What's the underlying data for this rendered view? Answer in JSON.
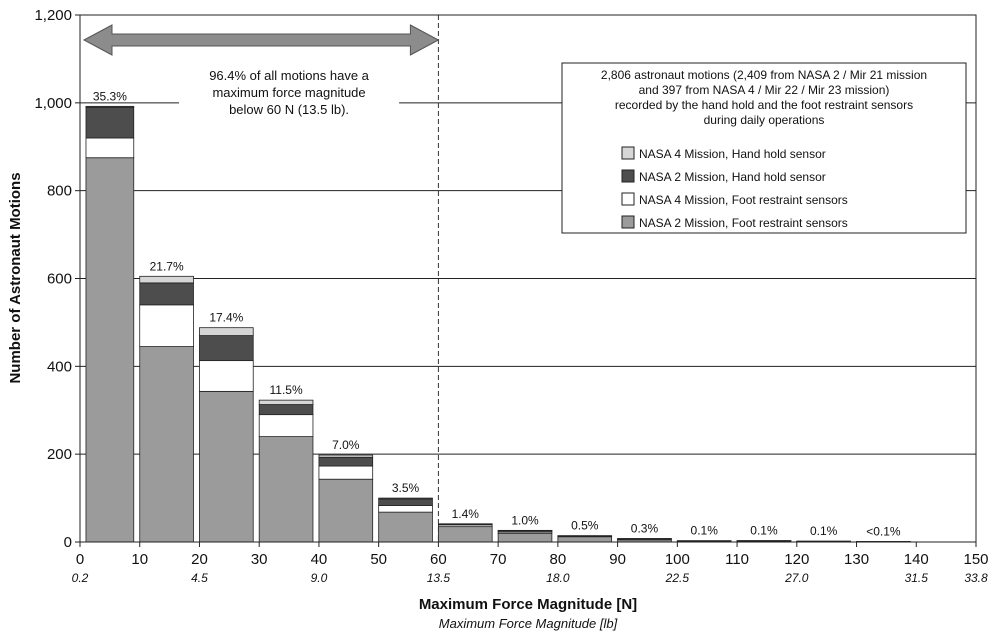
{
  "chart_data": {
    "type": "bar",
    "stacked": true,
    "xlabel": "Maximum Force Magnitude [N]",
    "xlabel2": "Maximum Force Magnitude [lb]",
    "ylabel": "Number of Astronaut Motions",
    "xlim": [
      0,
      150
    ],
    "ylim": [
      0,
      1200
    ],
    "xticks": [
      0,
      10,
      20,
      30,
      40,
      50,
      60,
      70,
      80,
      90,
      100,
      110,
      120,
      130,
      140,
      150
    ],
    "yticks": [
      0,
      200,
      400,
      600,
      800,
      1000,
      1200
    ],
    "ytick_labels": [
      "0",
      "200",
      "400",
      "600",
      "800",
      "1,000",
      "1,200"
    ],
    "lb_ticks": [
      {
        "n": 0,
        "label": "0.2"
      },
      {
        "n": 20,
        "label": "4.5"
      },
      {
        "n": 40,
        "label": "9.0"
      },
      {
        "n": 60,
        "label": "13.5"
      },
      {
        "n": 80,
        "label": "18.0"
      },
      {
        "n": 100,
        "label": "22.5"
      },
      {
        "n": 120,
        "label": "27.0"
      },
      {
        "n": 140,
        "label": "31.5"
      },
      {
        "n": 150,
        "label": "33.8"
      }
    ],
    "grid": "horizontal",
    "bin_edges": [
      [
        1,
        9
      ],
      [
        10,
        19
      ],
      [
        20,
        29
      ],
      [
        30,
        39
      ],
      [
        40,
        49
      ],
      [
        50,
        59
      ],
      [
        60,
        69
      ],
      [
        70,
        79
      ],
      [
        80,
        89
      ],
      [
        90,
        99
      ],
      [
        100,
        109
      ],
      [
        110,
        119
      ],
      [
        120,
        129
      ],
      [
        130,
        139
      ]
    ],
    "series": [
      {
        "name": "NASA 2 Mission, Foot restraint sensors",
        "color": "#9b9b9b",
        "values": [
          875,
          445,
          343,
          240,
          143,
          68,
          35,
          20,
          12,
          5,
          2,
          2,
          1,
          0.5
        ]
      },
      {
        "name": "NASA 4 Mission, Foot restraint sensors",
        "color": "#ffffff",
        "values": [
          45,
          95,
          70,
          50,
          30,
          15,
          4,
          3,
          1,
          2,
          0.5,
          0.5,
          0.3,
          0.2
        ]
      },
      {
        "name": "NASA 2 Mission, Hand hold sensor",
        "color": "#4d4d4d",
        "values": [
          70,
          50,
          57,
          23,
          20,
          15,
          2,
          3,
          1,
          0.5,
          0.3,
          0.5,
          0.5,
          0.2
        ]
      },
      {
        "name": "NASA 4 Mission, Hand hold sensor",
        "color": "#d6d6d6",
        "values": [
          2,
          15,
          18,
          10,
          5,
          2,
          0.5,
          0.5,
          0.5,
          0.5,
          0.2,
          0.2,
          0.2,
          0.1
        ]
      }
    ],
    "percent_labels": [
      "35.3%",
      "21.7%",
      "17.4%",
      "11.5%",
      "7.0%",
      "3.5%",
      "1.4%",
      "1.0%",
      "0.5%",
      "0.3%",
      "0.1%",
      "0.1%",
      "0.1%",
      "<0.1%"
    ],
    "threshold_n": 60,
    "arrow_range": [
      0,
      60
    ],
    "annotation": [
      "96.4% of all motions have a",
      "maximum force magnitude",
      "below 60 N (13.5 lb)."
    ],
    "info_box": [
      "2,806 astronaut motions (2,409 from NASA 2 / Mir 21 mission",
      "and 397 from NASA 4 / Mir 22 / Mir 23 mission)",
      "recorded by the hand hold and the foot restraint sensors",
      "during daily operations"
    ],
    "legend": [
      {
        "label": "NASA 4 Mission, Hand hold sensor",
        "color": "#d6d6d6"
      },
      {
        "label": "NASA 2 Mission, Hand hold sensor",
        "color": "#4d4d4d"
      },
      {
        "label": "NASA 4 Mission, Foot restraint sensors",
        "color": "#ffffff"
      },
      {
        "label": "NASA 2 Mission, Foot restraint sensors",
        "color": "#9b9b9b"
      }
    ],
    "legend_position": "top-right"
  }
}
